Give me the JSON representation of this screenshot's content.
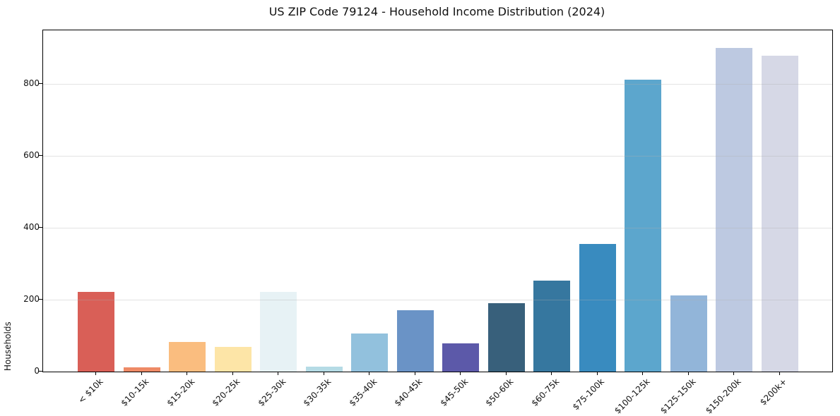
{
  "chart_data": {
    "type": "bar",
    "title": "US ZIP Code 79124 - Household Income Distribution (2024)",
    "xlabel": "",
    "ylabel": "Households",
    "ylim": [
      0,
      950
    ],
    "yticks": [
      0,
      200,
      400,
      600,
      800
    ],
    "grid": "horizontal-light",
    "legend": "none",
    "plot_background": "#ffffff",
    "categories": [
      "< $10k",
      "$10-15k",
      "$15-20k",
      "$20-25k",
      "$25-30k",
      "$30-35k",
      "$35-40k",
      "$40-45k",
      "$45-50k",
      "$50-60k",
      "$60-75k",
      "$75-100k",
      "$100-125k",
      "$125-150k",
      "$150-200k",
      "$200k+"
    ],
    "values": [
      222,
      12,
      83,
      69,
      222,
      14,
      106,
      171,
      79,
      190,
      253,
      355,
      812,
      212,
      900,
      879
    ],
    "bar_colors": [
      "#d95f57",
      "#ee8a66",
      "#fabd7f",
      "#fde5a7",
      "#e7f2f5",
      "#b5dbe5",
      "#92c1dd",
      "#6a93c6",
      "#5c59a9",
      "#38607b",
      "#36779f",
      "#398bbf",
      "#5ca6cd",
      "#92b5d9",
      "#bdc9e1",
      "#d6d8e6"
    ]
  }
}
